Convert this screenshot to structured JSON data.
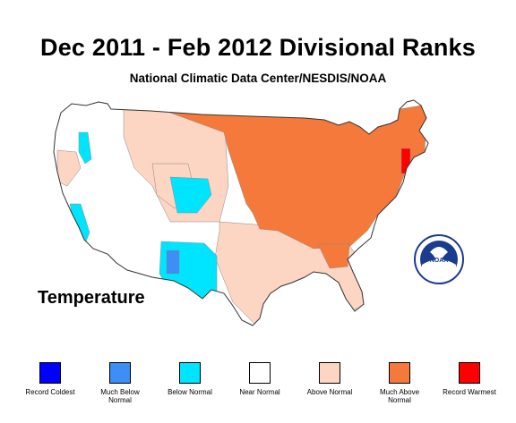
{
  "header": {
    "title": "Dec 2011 - Feb 2012 Divisional Ranks",
    "subtitle": "National Climatic Data Center/NESDIS/NOAA"
  },
  "map": {
    "variable_label": "Temperature",
    "logo_text": "NOAA",
    "base_color": "#ffffff",
    "category_colors": {
      "record_coldest": "#0000ff",
      "much_below_normal": "#3d8ef5",
      "below_normal": "#00e5ff",
      "near_normal": "#ffffff",
      "above_normal": "#fcd5c3",
      "much_above_normal": "#f5793a",
      "record_warmest": "#ff0000"
    }
  },
  "legend": {
    "items": [
      {
        "label": "Record Coldest",
        "color": "#0000ff"
      },
      {
        "label": "Much Below Normal",
        "color": "#3d8ef5"
      },
      {
        "label": "Below Normal",
        "color": "#00e5ff"
      },
      {
        "label": "Near Normal",
        "color": "#ffffff"
      },
      {
        "label": "Above Normal",
        "color": "#fcd5c3"
      },
      {
        "label": "Much Above Normal",
        "color": "#f5793a"
      },
      {
        "label": "Record Warmest",
        "color": "#ff0000"
      }
    ]
  }
}
